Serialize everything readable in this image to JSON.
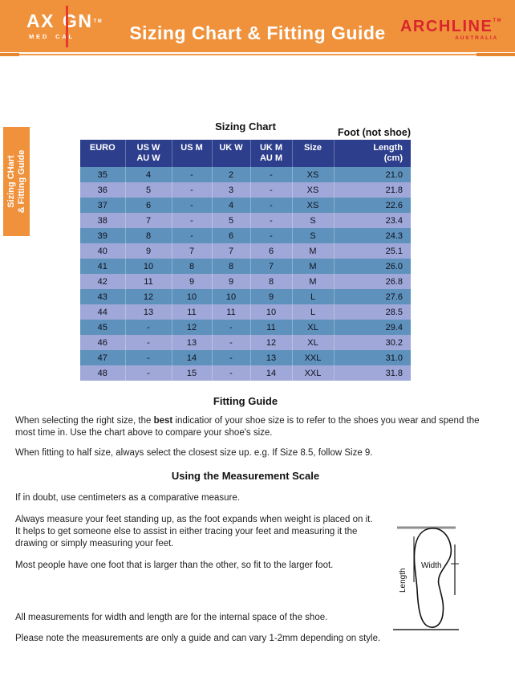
{
  "colors": {
    "orange": "#F0923C",
    "header_navy": "#2D3E8C",
    "row_steel_blue": "#5E92BC",
    "row_lavender": "#9FA8D8",
    "brand_red": "#D8262C",
    "logo_line_red": "#E6392E"
  },
  "header": {
    "logo": {
      "ax": "AX",
      "gn": "GN",
      "tm": "TM",
      "med": "MED",
      "cal": "CAL"
    },
    "title": "Sizing Chart & Fitting Guide",
    "brand": {
      "name": "ARCHLINE",
      "tm": "TM",
      "sub": "AUSTRALIA"
    }
  },
  "side_tab": {
    "line1": "Sizing CHart",
    "line2": "& Fitting Guide"
  },
  "sizing_chart": {
    "title": "Sizing Chart",
    "note": "Foot (not shoe)",
    "columns": [
      {
        "l1": "EURO",
        "l2": ""
      },
      {
        "l1": "US W",
        "l2": "AU W"
      },
      {
        "l1": "US M",
        "l2": ""
      },
      {
        "l1": "UK W",
        "l2": ""
      },
      {
        "l1": "UK M",
        "l2": "AU M"
      },
      {
        "l1": "Size",
        "l2": ""
      },
      {
        "l1": "Length",
        "l2": "(cm)"
      }
    ],
    "rows": [
      [
        "35",
        "4",
        "-",
        "2",
        "-",
        "XS",
        "21.0"
      ],
      [
        "36",
        "5",
        "-",
        "3",
        "-",
        "XS",
        "21.8"
      ],
      [
        "37",
        "6",
        "-",
        "4",
        "-",
        "XS",
        "22.6"
      ],
      [
        "38",
        "7",
        "-",
        "5",
        "-",
        "S",
        "23.4"
      ],
      [
        "39",
        "8",
        "-",
        "6",
        "-",
        "S",
        "24.3"
      ],
      [
        "40",
        "9",
        "7",
        "7",
        "6",
        "M",
        "25.1"
      ],
      [
        "41",
        "10",
        "8",
        "8",
        "7",
        "M",
        "26.0"
      ],
      [
        "42",
        "11",
        "9",
        "9",
        "8",
        "M",
        "26.8"
      ],
      [
        "43",
        "12",
        "10",
        "10",
        "9",
        "L",
        "27.6"
      ],
      [
        "44",
        "13",
        "11",
        "11",
        "10",
        "L",
        "28.5"
      ],
      [
        "45",
        "-",
        "12",
        "-",
        "11",
        "XL",
        "29.4"
      ],
      [
        "46",
        "-",
        "13",
        "-",
        "12",
        "XL",
        "30.2"
      ],
      [
        "47",
        "-",
        "14",
        "-",
        "13",
        "XXL",
        "31.0"
      ],
      [
        "48",
        "-",
        "15",
        "-",
        "14",
        "XXL",
        "31.8"
      ]
    ]
  },
  "fitting_guide": {
    "heading": "Fitting Guide",
    "p1_pre": "When selecting the right size, the ",
    "p1_bold": "best",
    "p1_post": " indicatior of your shoe size is to refer to the shoes you wear and spend the most time in. Use the chart above to compare your shoe's size.",
    "p2": "When fitting to half size, always select the closest size up. e.g. If Size 8.5, follow Size 9."
  },
  "measurement": {
    "heading": "Using the Measurement Scale",
    "p1": "If in doubt, use centimeters as a comparative measure.",
    "p2": "Always measure your feet standing up, as the foot expands when weight is placed on it. It helps to get someone else to assist in either tracing your feet and measuring it the drawing or simply measuring your feet.",
    "p3": "Most people have one foot that is larger than the other, so fit to the larger foot.",
    "p4": "All measurements for width and length are for the internal space of the shoe.",
    "p5": "Please note the measurements are only a guide and can vary 1-2mm depending on style."
  },
  "diagram": {
    "width_label": "Width",
    "length_label": "Length"
  }
}
